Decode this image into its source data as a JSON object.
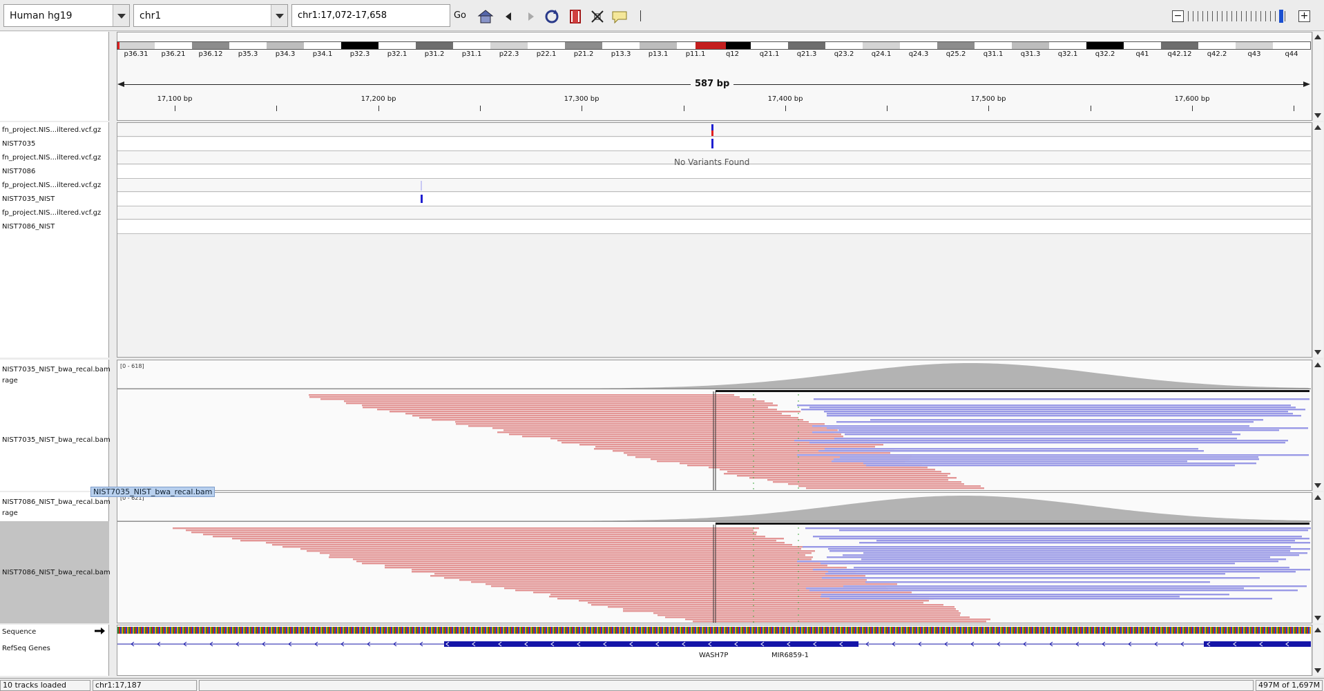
{
  "toolbar": {
    "genome": "Human hg19",
    "chromosome": "chr1",
    "locus": "chr1:17,072-17,658",
    "go_label": "Go"
  },
  "ideogram": {
    "bands": [
      "p36.31",
      "p36.21",
      "p36.12",
      "p35.3",
      "p34.3",
      "p34.1",
      "p32.3",
      "p32.1",
      "p31.2",
      "p31.1",
      "p22.3",
      "p22.1",
      "p21.2",
      "p13.3",
      "p13.1",
      "p11.1",
      "q12",
      "q21.1",
      "q21.3",
      "q23.2",
      "q24.1",
      "q24.3",
      "q25.2",
      "q31.1",
      "q31.3",
      "q32.1",
      "q32.2",
      "q41",
      "q42.12",
      "q42.2",
      "q43",
      "q44"
    ]
  },
  "ruler": {
    "span": "587 bp",
    "ticks": [
      {
        "label": "17,100 bp",
        "pos": 17100
      },
      {
        "label": "17,200 bp",
        "pos": 17200
      },
      {
        "label": "17,300 bp",
        "pos": 17300
      },
      {
        "label": "17,400 bp",
        "pos": 17400
      },
      {
        "label": "17,500 bp",
        "pos": 17500
      },
      {
        "label": "17,600 bp",
        "pos": 17600
      }
    ],
    "minor_ticks": [
      17150,
      17250,
      17350,
      17450,
      17550,
      17650
    ]
  },
  "variant_tracks": [
    {
      "file": "fn_project.NIS...iltered.vcf.gz",
      "sample": "NIST7035"
    },
    {
      "file": "fn_project.NIS...iltered.vcf.gz",
      "sample": "NIST7086"
    },
    {
      "file": "fp_project.NIS...iltered.vcf.gz",
      "sample": "NIST7035_NIST"
    },
    {
      "file": "fp_project.NIS...iltered.vcf.gz",
      "sample": "NIST7086_NIST"
    }
  ],
  "no_variants_text": "No Variants Found",
  "alignments": [
    {
      "coverage_name": "NIST7035_NIST_bwa_recal.bam",
      "coverage_suffix": "rage",
      "range": "[0 - 618]",
      "reads_name": "NIST7035_NIST_bwa_recal.bam"
    },
    {
      "coverage_name": "NIST7086_NIST_bwa_recal.bam",
      "coverage_suffix": "rage",
      "range": "[0 - 621]",
      "reads_name": "NIST7086_NIST_bwa_recal.bam"
    }
  ],
  "tooltip": "NIST7035_NIST_bwa_recal.bam",
  "sequence_label": "Sequence",
  "genes_label": "RefSeq Genes",
  "genes": [
    "WASH7P",
    "MIR6859-1"
  ],
  "status": {
    "tracks": "10 tracks loaded",
    "position": "chr1:17,187",
    "memory": "497M of 1,697M"
  },
  "colors": {
    "forward_read": "#e39696",
    "reverse_read": "#9999e6",
    "coverage": "#b3b3b3",
    "variant_blue": "#1f1fd0",
    "variant_red": "#e02020",
    "gene": "#1515a8"
  }
}
